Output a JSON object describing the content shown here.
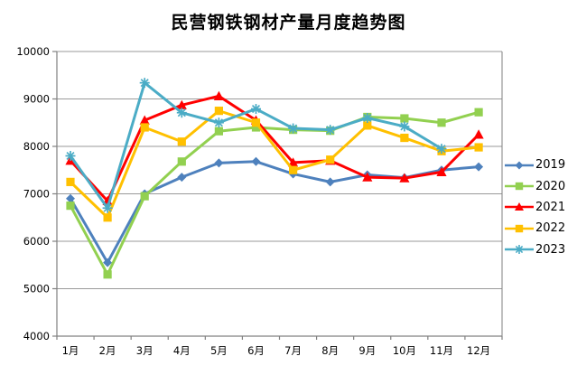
{
  "title": "民营钢铁钢材产量月度趋势图",
  "chart_data": {
    "type": "line",
    "title": "民营钢铁钢材产量月度趋势图",
    "categories": [
      "1月",
      "2月",
      "3月",
      "4月",
      "5月",
      "6月",
      "7月",
      "8月",
      "9月",
      "10月",
      "11月",
      "12月"
    ],
    "series": [
      {
        "name": "2019",
        "color": "#4E81BD",
        "marker": "diamond",
        "values": [
          6900,
          5550,
          7000,
          7350,
          7650,
          7680,
          7420,
          7250,
          7400,
          7340,
          7500,
          7570
        ]
      },
      {
        "name": "2020",
        "color": "#92D050",
        "marker": "square",
        "values": [
          6750,
          5300,
          6950,
          7680,
          8320,
          8400,
          8350,
          8330,
          8620,
          8590,
          8500,
          8720
        ]
      },
      {
        "name": "2021",
        "color": "#FF0000",
        "marker": "triangle",
        "values": [
          7700,
          6850,
          8550,
          8870,
          9060,
          8550,
          7660,
          7700,
          7350,
          7330,
          7460,
          8250
        ]
      },
      {
        "name": "2022",
        "color": "#FFC000",
        "marker": "square",
        "values": [
          7250,
          6500,
          8400,
          8100,
          8750,
          8500,
          7500,
          7720,
          8440,
          8180,
          7900,
          7980
        ]
      },
      {
        "name": "2023",
        "color": "#4BACC6",
        "marker": "asterisk",
        "values": [
          7800,
          6700,
          9340,
          8710,
          8500,
          8790,
          8380,
          8350,
          8600,
          8420,
          7950,
          null
        ]
      }
    ],
    "ylim": [
      4000,
      10000
    ],
    "ytick_step": 1000,
    "ytick_labels": [
      "4000",
      "5000",
      "6000",
      "7000",
      "8000",
      "9000",
      "10000"
    ],
    "grid": true,
    "legend_position": "right",
    "axis_color": "#808080",
    "gridline_color": "#9a9a9a"
  }
}
